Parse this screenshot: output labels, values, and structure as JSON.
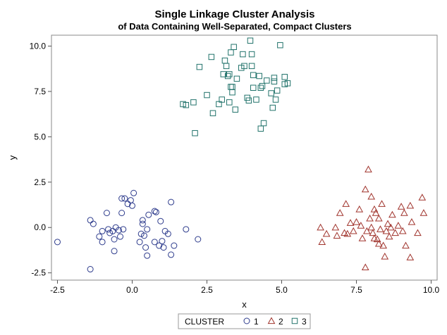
{
  "chart_data": {
    "type": "scatter",
    "title": "Single Linkage Cluster Analysis",
    "subtitle": "of Data Containing Well-Separated, Compact Clusters",
    "xlabel": "x",
    "ylabel": "y",
    "xlim": [
      -2.7,
      10.2
    ],
    "ylim": [
      -2.9,
      10.6
    ],
    "xticks": [
      "-2.5",
      "0.0",
      "2.5",
      "5.0",
      "7.5",
      "10.0"
    ],
    "yticks": [
      "-2.5",
      "0.0",
      "2.5",
      "5.0",
      "7.5",
      "10.0"
    ],
    "grid": false,
    "legend": {
      "title": "CLUSTER",
      "placement": "bottom-center"
    },
    "series": [
      {
        "name": "1",
        "marker": "circle",
        "color": "#2d3b8c",
        "points": [
          [
            -2.5,
            -0.8
          ],
          [
            -1.4,
            0.4
          ],
          [
            -1.3,
            0.2
          ],
          [
            -1.4,
            -2.3
          ],
          [
            -1.1,
            -0.5
          ],
          [
            -1.0,
            -0.2
          ],
          [
            -1.0,
            -0.8
          ],
          [
            -0.85,
            0.8
          ],
          [
            -0.8,
            -0.1
          ],
          [
            -0.75,
            -0.3
          ],
          [
            -0.65,
            -0.2
          ],
          [
            -0.6,
            -1.3
          ],
          [
            -0.6,
            -0.65
          ],
          [
            -0.55,
            0.0
          ],
          [
            -0.45,
            -0.15
          ],
          [
            -0.4,
            -0.5
          ],
          [
            -0.35,
            0.8
          ],
          [
            -0.35,
            1.6
          ],
          [
            -0.3,
            -0.1
          ],
          [
            -0.25,
            1.6
          ],
          [
            -0.15,
            1.3
          ],
          [
            -0.05,
            1.5
          ],
          [
            0.0,
            1.2
          ],
          [
            0.05,
            1.9
          ],
          [
            0.25,
            -0.8
          ],
          [
            0.3,
            -0.35
          ],
          [
            0.35,
            0.2
          ],
          [
            0.35,
            0.4
          ],
          [
            0.4,
            -0.45
          ],
          [
            0.45,
            -1.1
          ],
          [
            0.5,
            -0.1
          ],
          [
            0.5,
            -1.55
          ],
          [
            0.55,
            0.7
          ],
          [
            0.75,
            -0.8
          ],
          [
            0.75,
            0.9
          ],
          [
            0.8,
            0.85
          ],
          [
            0.9,
            -1.0
          ],
          [
            1.0,
            -0.75
          ],
          [
            1.05,
            -1.1
          ],
          [
            1.1,
            -0.2
          ],
          [
            1.2,
            -0.35
          ],
          [
            1.3,
            -1.5
          ],
          [
            1.3,
            1.4
          ],
          [
            1.4,
            -1.0
          ],
          [
            1.8,
            -0.1
          ],
          [
            2.2,
            -0.65
          ],
          [
            0.95,
            0.35
          ]
        ]
      },
      {
        "name": "2",
        "marker": "triangle",
        "color": "#a0342d",
        "points": [
          [
            6.3,
            0.0
          ],
          [
            6.35,
            -0.8
          ],
          [
            6.5,
            -0.35
          ],
          [
            6.8,
            0.0
          ],
          [
            6.85,
            -0.45
          ],
          [
            6.95,
            0.8
          ],
          [
            7.1,
            -0.3
          ],
          [
            7.15,
            1.3
          ],
          [
            7.2,
            -0.35
          ],
          [
            7.3,
            0.25
          ],
          [
            7.4,
            -0.2
          ],
          [
            7.5,
            0.3
          ],
          [
            7.6,
            1.0
          ],
          [
            7.65,
            0.1
          ],
          [
            7.7,
            -0.6
          ],
          [
            7.8,
            -2.2
          ],
          [
            7.8,
            2.1
          ],
          [
            7.85,
            -0.2
          ],
          [
            7.9,
            3.2
          ],
          [
            7.95,
            0.5
          ],
          [
            8.0,
            0.0
          ],
          [
            8.0,
            1.7
          ],
          [
            8.05,
            -0.3
          ],
          [
            8.1,
            -0.6
          ],
          [
            8.1,
            1.0
          ],
          [
            8.15,
            0.8
          ],
          [
            8.2,
            -0.65
          ],
          [
            8.25,
            0.5
          ],
          [
            8.3,
            -0.1
          ],
          [
            8.35,
            1.3
          ],
          [
            8.4,
            -1.0
          ],
          [
            8.45,
            -1.6
          ],
          [
            8.5,
            -0.2
          ],
          [
            8.55,
            0.2
          ],
          [
            8.6,
            -0.5
          ],
          [
            8.65,
            0.0
          ],
          [
            8.7,
            0.7
          ],
          [
            8.8,
            -0.3
          ],
          [
            8.9,
            0.1
          ],
          [
            9.0,
            1.15
          ],
          [
            9.05,
            -0.2
          ],
          [
            9.1,
            0.8
          ],
          [
            9.15,
            -1.0
          ],
          [
            9.3,
            1.2
          ],
          [
            9.3,
            -1.65
          ],
          [
            9.35,
            0.3
          ],
          [
            9.55,
            -0.3
          ],
          [
            9.7,
            1.65
          ],
          [
            9.75,
            0.8
          ],
          [
            8.25,
            -0.9
          ]
        ]
      },
      {
        "name": "3",
        "marker": "square",
        "color": "#22736b",
        "points": [
          [
            1.7,
            6.8
          ],
          [
            1.8,
            6.75
          ],
          [
            2.05,
            6.9
          ],
          [
            2.1,
            5.2
          ],
          [
            2.25,
            8.85
          ],
          [
            2.5,
            7.3
          ],
          [
            2.65,
            9.4
          ],
          [
            2.7,
            6.3
          ],
          [
            2.9,
            6.8
          ],
          [
            3.0,
            7.05
          ],
          [
            3.05,
            8.45
          ],
          [
            3.1,
            9.2
          ],
          [
            3.15,
            8.9
          ],
          [
            3.2,
            8.35
          ],
          [
            3.25,
            8.45
          ],
          [
            3.25,
            6.9
          ],
          [
            3.3,
            9.65
          ],
          [
            3.3,
            7.75
          ],
          [
            3.35,
            7.75
          ],
          [
            3.35,
            7.45
          ],
          [
            3.4,
            9.95
          ],
          [
            3.45,
            6.5
          ],
          [
            3.5,
            8.2
          ],
          [
            3.65,
            8.8
          ],
          [
            3.7,
            9.55
          ],
          [
            3.75,
            8.9
          ],
          [
            3.85,
            7.15
          ],
          [
            3.9,
            7.0
          ],
          [
            3.95,
            10.3
          ],
          [
            4.0,
            9.55
          ],
          [
            4.0,
            8.9
          ],
          [
            4.05,
            8.4
          ],
          [
            4.05,
            7.7
          ],
          [
            4.15,
            7.05
          ],
          [
            4.25,
            8.35
          ],
          [
            4.3,
            7.7
          ],
          [
            4.3,
            5.45
          ],
          [
            4.35,
            7.8
          ],
          [
            4.4,
            5.75
          ],
          [
            4.5,
            8.1
          ],
          [
            4.65,
            7.4
          ],
          [
            4.7,
            6.6
          ],
          [
            4.75,
            8.25
          ],
          [
            4.8,
            7.05
          ],
          [
            4.85,
            7.55
          ],
          [
            4.95,
            10.05
          ],
          [
            5.1,
            8.3
          ],
          [
            5.1,
            7.9
          ],
          [
            5.2,
            7.95
          ],
          [
            4.75,
            8.05
          ]
        ]
      }
    ]
  }
}
